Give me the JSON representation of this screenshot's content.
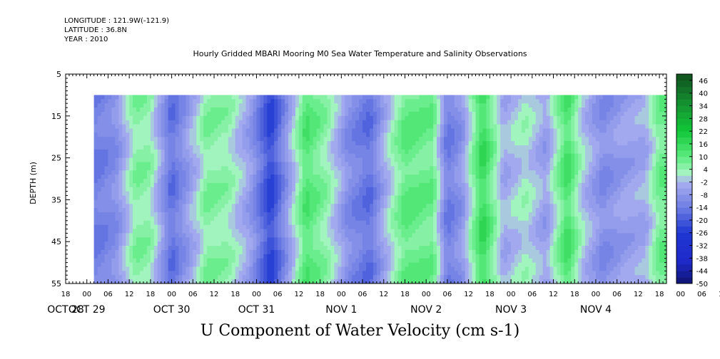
{
  "header": {
    "longitude": "LONGITUDE : 121.9W(-121.9)",
    "latitude": "LATITUDE : 36.8N",
    "year": "YEAR : 2010",
    "title": "Hourly Gridded MBARI Mooring M0 Sea Water Temperature and Salinity Observations"
  },
  "chart_data": {
    "type": "heatmap",
    "title": "U Component of Water Velocity (cm s-1)",
    "xlabel": "",
    "ylabel": "DEPTH (m)",
    "x_start": "2010-10-28 18:00",
    "x_end": "2010-11-04 20:00",
    "x_hour_ticks": [
      "18",
      "00",
      "06",
      "12",
      "18",
      "00",
      "06",
      "12",
      "18",
      "00",
      "06",
      "12",
      "18",
      "00",
      "06",
      "12",
      "18",
      "00",
      "06",
      "12",
      "18",
      "00",
      "06",
      "12",
      "18",
      "00",
      "06",
      "12",
      "18",
      "00",
      "06",
      "12",
      "18"
    ],
    "x_date_labels": [
      "OCT 28",
      "OCT 29",
      "OCT 30",
      "OCT 31",
      "NOV  1",
      "NOV  2",
      "NOV  3",
      "NOV  4"
    ],
    "y_range": [
      5,
      55
    ],
    "y_reversed": true,
    "y_ticks": [
      5,
      15,
      25,
      35,
      45,
      55
    ],
    "data_depth_range": [
      10,
      55
    ],
    "data_time_start": "2010-10-29 02:00",
    "colorbar": {
      "range": [
        -50,
        49
      ],
      "labels": [
        "46",
        "40",
        "34",
        "28",
        "22",
        "16",
        "10",
        "4",
        "-2",
        "-8",
        "-14",
        "-20",
        "-26",
        "-32",
        "-38",
        "-44",
        "-50"
      ]
    },
    "colors": {
      "neg_strong": "#1e37d2",
      "neg_mid": "#6e7ee4",
      "neg_weak": "#a9afef",
      "pos_weak": "#a6f5c2",
      "pos_mid": "#5ceb80",
      "pos_strong": "#10c838"
    },
    "values_by_time": [
      [
        "2010-10-29 02:00",
        -14
      ],
      [
        "2010-10-29 08:00",
        -10
      ],
      [
        "2010-10-29 14:00",
        6
      ],
      [
        "2010-10-29 18:00",
        4
      ],
      [
        "2010-10-30 00:00",
        -16
      ],
      [
        "2010-10-30 04:00",
        -8
      ],
      [
        "2010-10-30 10:00",
        6
      ],
      [
        "2010-10-30 16:00",
        4
      ],
      [
        "2010-10-30 22:00",
        -6
      ],
      [
        "2010-10-31 04:00",
        -24
      ],
      [
        "2010-10-31 08:00",
        -10
      ],
      [
        "2010-10-31 14:00",
        12
      ],
      [
        "2010-10-31 20:00",
        4
      ],
      [
        "2010-11-01 02:00",
        -10
      ],
      [
        "2010-11-01 08:00",
        -16
      ],
      [
        "2010-11-01 12:00",
        -4
      ],
      [
        "2010-11-01 18:00",
        10
      ],
      [
        "2010-11-02 02:00",
        8
      ],
      [
        "2010-11-02 06:00",
        -14
      ],
      [
        "2010-11-02 10:00",
        -8
      ],
      [
        "2010-11-02 16:00",
        16
      ],
      [
        "2010-11-02 22:00",
        -4
      ],
      [
        "2010-11-03 04:00",
        2
      ],
      [
        "2010-11-03 10:00",
        -6
      ],
      [
        "2010-11-03 16:00",
        14
      ],
      [
        "2010-11-03 20:00",
        0
      ],
      [
        "2010-11-04 02:00",
        -10
      ],
      [
        "2010-11-04 08:00",
        -6
      ],
      [
        "2010-11-04 14:00",
        -4
      ],
      [
        "2010-11-04 18:00",
        8
      ]
    ]
  }
}
